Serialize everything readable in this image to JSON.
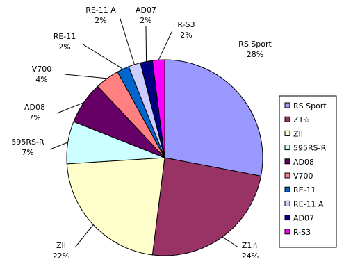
{
  "chart_data": {
    "type": "pie",
    "title": "",
    "start_angle_deg": 0,
    "direction": "clockwise",
    "slices": [
      {
        "label": "RS Sport",
        "pct_label": "28%",
        "value": 28,
        "color": "#9999FF"
      },
      {
        "label": "Z1☆",
        "pct_label": "24%",
        "value": 24,
        "color": "#993366"
      },
      {
        "label": "ZII",
        "pct_label": "22%",
        "value": 22,
        "color": "#FFFFCC"
      },
      {
        "label": "595RS-R",
        "pct_label": "7%",
        "value": 7,
        "color": "#CCFFFF"
      },
      {
        "label": "AD08",
        "pct_label": "7%",
        "value": 7,
        "color": "#660066"
      },
      {
        "label": "V700",
        "pct_label": "4%",
        "value": 4,
        "color": "#FF8080"
      },
      {
        "label": "RE-11",
        "pct_label": "2%",
        "value": 2,
        "color": "#0066CC"
      },
      {
        "label": "RE-11 A",
        "pct_label": "2%",
        "value": 2,
        "color": "#CCCCFF"
      },
      {
        "label": "AD07",
        "pct_label": "2%",
        "value": 2,
        "color": "#000080"
      },
      {
        "label": "R-S3",
        "pct_label": "2%",
        "value": 2,
        "color": "#FF00FF"
      }
    ],
    "legend": {
      "position": "right",
      "entries": [
        "RS Sport",
        "Z1☆",
        "ZII",
        "595RS-R",
        "AD08",
        "V700",
        "RE-11",
        "RE-11 A",
        "AD07",
        "R-S3"
      ]
    }
  }
}
